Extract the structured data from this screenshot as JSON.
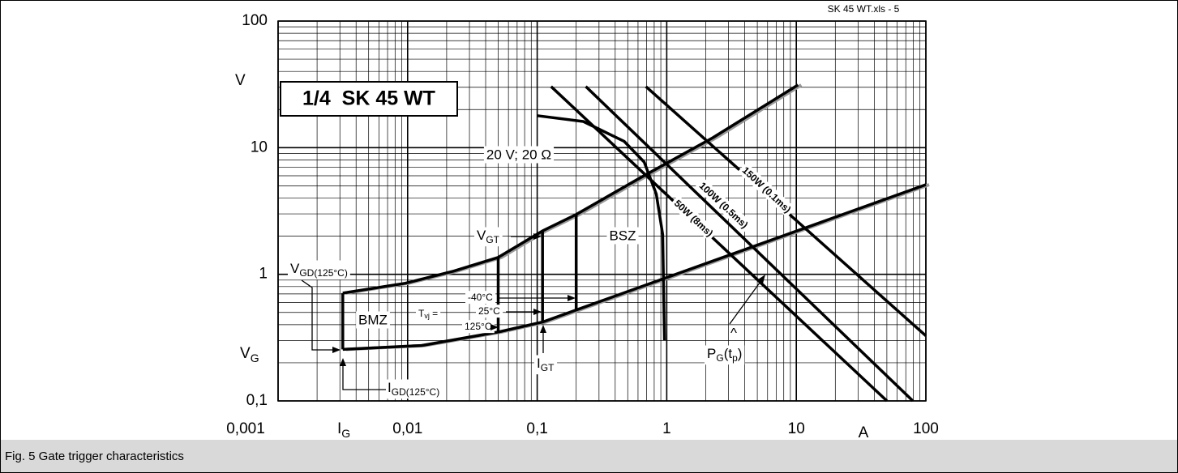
{
  "caption": "Fig. 5 Gate trigger characteristics",
  "chart_data": {
    "type": "line",
    "x_scale": "log",
    "y_scale": "log",
    "xlim": [
      0.001,
      100
    ],
    "ylim": [
      0.1,
      100
    ],
    "xticks": [
      {
        "value": 0.001,
        "label": "0,001"
      },
      {
        "value": 0.01,
        "label": "0,01"
      },
      {
        "value": 0.1,
        "label": "0,1"
      },
      1,
      10,
      100
    ],
    "yticks": [
      {
        "value": 0.1,
        "label": "0,1"
      },
      1,
      10,
      100
    ],
    "grid": true,
    "minor_grid": true,
    "x_label": "A",
    "y_label": "V",
    "x_symbol": [
      "I",
      "G"
    ],
    "y_symbol": [
      "V",
      "G"
    ],
    "annotations": {
      "file": "SK 45 WT.xls - 5",
      "device": "1/4  SK 45 WT",
      "bsz": "BSZ",
      "bmz": "BMZ",
      "vgt": [
        "V",
        "GT"
      ],
      "igt": [
        "I",
        "GT"
      ],
      "vgd": [
        "V",
        "GD(125°C)"
      ],
      "igd": [
        "I",
        "GD(125°C)"
      ],
      "tvj": [
        "T",
        "vj",
        " ="
      ],
      "t1": "-40°C",
      "t2": "25°C",
      "t3": "125°C",
      "hat": "^",
      "pg": [
        "P",
        "G",
        "(t",
        "p",
        ")"
      ]
    },
    "series": [
      {
        "color": "#000000",
        "shadow": "#999999",
        "x": [
          0.00316,
          0.0096,
          0.0227,
          0.05,
          0.11,
          0.2,
          0.62,
          2.27,
          10.3
        ],
        "values": [
          0.71,
          0.85,
          1.06,
          1.36,
          2.2,
          2.97,
          5.76,
          12.0,
          31.3
        ]
      },
      {
        "color": "#000000",
        "shadow": "#999999",
        "x": [
          0.00316,
          0.0128,
          0.05,
          0.11,
          100
        ],
        "values": [
          0.255,
          0.274,
          0.35,
          0.42,
          5.1
        ]
      },
      {
        "color": "#000000",
        "x": [
          0.00316,
          0.00316
        ],
        "values": [
          0.71,
          0.255
        ]
      },
      {
        "color": "#000000",
        "x": [
          0.05,
          0.05
        ],
        "values": [
          1.36,
          0.35
        ]
      },
      {
        "color": "#000000",
        "x": [
          0.11,
          0.11
        ],
        "values": [
          2.2,
          0.42
        ]
      },
      {
        "color": "#000000",
        "x": [
          0.2,
          0.2
        ],
        "values": [
          2.97,
          0.515
        ]
      },
      {
        "name": "20 V; 20 Ω",
        "color": "#000000",
        "x": [
          0.1,
          0.227,
          0.47,
          0.67,
          0.83,
          0.93,
          0.96
        ],
        "values": [
          17.9,
          16.1,
          11.2,
          7.7,
          4.3,
          2.06,
          0.3
        ]
      },
      {
        "name": "50W (8ms)",
        "color": "#000000",
        "x": [
          0.128,
          50.1
        ],
        "values": [
          30.4,
          0.1
        ]
      },
      {
        "name": "100W (0.5ms)",
        "color": "#000000",
        "x": [
          0.237,
          79.4
        ],
        "values": [
          30.4,
          0.1
        ]
      },
      {
        "name": "150W (0.1ms)",
        "color": "#000000",
        "x": [
          0.69,
          100
        ],
        "values": [
          30.4,
          0.327
        ]
      }
    ]
  }
}
